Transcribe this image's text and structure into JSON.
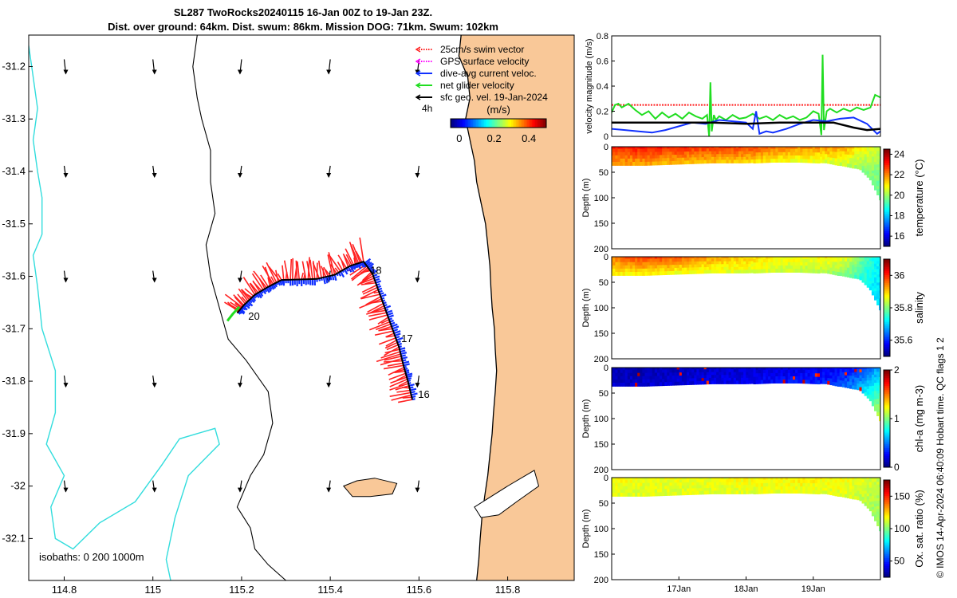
{
  "title": {
    "line1": "SL287 TwoRocks20240115 16-Jan 00Z to 19-Jan 23Z.",
    "line2": "Dist. over ground: 64km. Dist. swum: 86km. Mission DOG: 71km. Swum: 102km"
  },
  "credit": "© IMOS 14-Apr-2024 06:40:09 Hobart time. QC flags 1  2",
  "colors": {
    "land": "#f9c898",
    "isobath_0": "#000000",
    "isobath_200": "#000000",
    "isobath_1000": "#33dddd",
    "swim_vector": "#ff2020",
    "gps_velocity": "#ff00ff",
    "dive_avg": "#1030ff",
    "net_glider": "#20dd20",
    "sfc_geo": "#000000",
    "track": "#000000"
  },
  "chart_data": [
    {
      "id": "map",
      "type": "scatter",
      "xlim": [
        114.72,
        115.95
      ],
      "ylim": [
        -32.18,
        -31.14
      ],
      "x_ticks": [
        114.8,
        115,
        115.2,
        115.4,
        115.6,
        115.8
      ],
      "x_tick_labels": [
        "114.8",
        "115",
        "115.2",
        "115.4",
        "115.6",
        "115.8"
      ],
      "y_ticks": [
        -31.2,
        -31.3,
        -31.4,
        -31.5,
        -31.6,
        -31.7,
        -31.8,
        -31.9,
        -32,
        -32.1
      ],
      "y_tick_labels": [
        "-31.2",
        "-31.3",
        "-31.4",
        "-31.5",
        "-31.6",
        "-31.7",
        "-31.8",
        "-31.9",
        "-32",
        "-32.1"
      ],
      "legend": {
        "position": "top-right",
        "entries": [
          {
            "label": "25cm/s swim vector",
            "color": "#ff2020",
            "style": "dotted"
          },
          {
            "label": "GPS surface velocity",
            "color": "#ff00ff",
            "style": "dotted"
          },
          {
            "label": "dive-avg current veloc.",
            "color": "#1030ff",
            "style": "solid"
          },
          {
            "label": "net glider velocity",
            "color": "#20dd20",
            "style": "solid"
          },
          {
            "label": "sfc geo. vel. 19-Jan-2024",
            "color": "#000000",
            "style": "solid"
          }
        ],
        "scale_label": "4h"
      },
      "colorbar": {
        "label": "(m/s)",
        "ticks": [
          0,
          0.2,
          0.4
        ],
        "tick_labels": [
          "0",
          "0.2",
          "0.4"
        ],
        "range": [
          -0.05,
          0.5
        ]
      },
      "isobath_label": "isobaths: 0   200  1000m",
      "track": [
        {
          "lon": 115.585,
          "lat": -31.835
        },
        {
          "lon": 115.575,
          "lat": -31.8
        },
        {
          "lon": 115.565,
          "lat": -31.77
        },
        {
          "lon": 115.555,
          "lat": -31.735
        },
        {
          "lon": 115.54,
          "lat": -31.7
        },
        {
          "lon": 115.525,
          "lat": -31.665
        },
        {
          "lon": 115.51,
          "lat": -31.63
        },
        {
          "lon": 115.495,
          "lat": -31.595
        },
        {
          "lon": 115.475,
          "lat": -31.572
        },
        {
          "lon": 115.445,
          "lat": -31.58
        },
        {
          "lon": 115.41,
          "lat": -31.597
        },
        {
          "lon": 115.37,
          "lat": -31.605
        },
        {
          "lon": 115.33,
          "lat": -31.606
        },
        {
          "lon": 115.29,
          "lat": -31.607
        },
        {
          "lon": 115.26,
          "lat": -31.62
        },
        {
          "lon": 115.23,
          "lat": -31.635
        },
        {
          "lon": 115.205,
          "lat": -31.655
        },
        {
          "lon": 115.19,
          "lat": -31.67
        }
      ],
      "net_glider_tail": [
        {
          "lon": 115.195,
          "lat": -31.658
        },
        {
          "lon": 115.18,
          "lat": -31.672
        },
        {
          "lon": 115.168,
          "lat": -31.685
        }
      ],
      "day_labels": [
        {
          "text": "16",
          "lon": 115.598,
          "lat": -31.832
        },
        {
          "text": "17",
          "lon": 115.56,
          "lat": -31.725
        },
        {
          "text": "18",
          "lon": 115.49,
          "lat": -31.595
        },
        {
          "text": "20",
          "lon": 115.215,
          "lat": -31.683
        }
      ],
      "sfc_geo_arrow_grid": {
        "lons": [
          114.8,
          115.0,
          115.2,
          115.4,
          115.6
        ],
        "lats": [
          -31.2,
          -31.4,
          -31.6,
          -31.8,
          -32.0
        ]
      }
    },
    {
      "id": "velocity",
      "type": "line",
      "ylabel": "velocity magnitude (m/s)",
      "ylim": [
        0,
        0.8
      ],
      "y_ticks": [
        0,
        0.2,
        0.4,
        0.6,
        0.8
      ],
      "y_tick_labels": [
        "0",
        "0.2",
        "0.4",
        "0.6",
        "0.8"
      ],
      "x_days": [
        16,
        20
      ],
      "series": [
        {
          "name": "swim vector",
          "color": "#ff2020",
          "style": "dotted",
          "t": [
            16.0,
            20.0
          ],
          "v": [
            0.25,
            0.25
          ]
        },
        {
          "name": "net glider velocity",
          "color": "#20dd20",
          "t": [
            16.0,
            16.05,
            16.1,
            16.15,
            16.25,
            16.35,
            16.45,
            16.55,
            16.65,
            16.75,
            16.85,
            16.95,
            17.05,
            17.15,
            17.25,
            17.35,
            17.42,
            17.45,
            17.47,
            17.49,
            17.52,
            17.55,
            17.6,
            17.7,
            17.8,
            17.9,
            18.0,
            18.1,
            18.2,
            18.3,
            18.4,
            18.5,
            18.6,
            18.7,
            18.8,
            18.9,
            19.0,
            19.08,
            19.12,
            19.14,
            19.16,
            19.2,
            19.25,
            19.35,
            19.45,
            19.55,
            19.65,
            19.75,
            19.85,
            19.92,
            20.0
          ],
          "v": [
            0.19,
            0.25,
            0.26,
            0.23,
            0.26,
            0.21,
            0.17,
            0.2,
            0.14,
            0.19,
            0.15,
            0.18,
            0.14,
            0.19,
            0.16,
            0.14,
            0.17,
            0.0,
            0.43,
            0.04,
            0.17,
            0.13,
            0.16,
            0.13,
            0.17,
            0.14,
            0.15,
            0.18,
            0.14,
            0.16,
            0.13,
            0.17,
            0.14,
            0.16,
            0.13,
            0.15,
            0.2,
            0.18,
            0.01,
            0.65,
            0.05,
            0.2,
            0.22,
            0.19,
            0.22,
            0.2,
            0.23,
            0.21,
            0.23,
            0.33,
            0.31
          ]
        },
        {
          "name": "dive-avg current veloc.",
          "color": "#1030ff",
          "t": [
            16.0,
            16.2,
            16.4,
            16.6,
            16.8,
            17.0,
            17.2,
            17.4,
            17.6,
            17.8,
            18.0,
            18.1,
            18.15,
            18.2,
            18.3,
            18.4,
            18.6,
            18.8,
            19.0,
            19.2,
            19.4,
            19.6,
            19.8,
            19.95,
            20.0
          ],
          "v": [
            0.06,
            0.05,
            0.04,
            0.03,
            0.05,
            0.08,
            0.11,
            0.1,
            0.13,
            0.12,
            0.11,
            0.06,
            0.2,
            0.02,
            0.04,
            0.03,
            0.06,
            0.1,
            0.13,
            0.12,
            0.14,
            0.15,
            0.1,
            0.02,
            0.04
          ]
        },
        {
          "name": "sfc geo. vel.",
          "color": "#000000",
          "t": [
            16.0,
            16.5,
            17.0,
            17.5,
            18.0,
            18.5,
            19.0,
            19.3,
            19.6,
            19.8,
            20.0
          ],
          "v": [
            0.11,
            0.11,
            0.11,
            0.11,
            0.1,
            0.11,
            0.11,
            0.11,
            0.07,
            0.05,
            0.06
          ]
        }
      ]
    },
    {
      "id": "temperature",
      "type": "heatmap",
      "ylabel": "Depth (m)",
      "colorbar_label": "temperature (°C)",
      "ylim": [
        200,
        0
      ],
      "y_ticks": [
        0,
        50,
        100,
        150,
        200
      ],
      "y_tick_labels": [
        "0",
        "50",
        "100",
        "150",
        "200"
      ],
      "clim": [
        15,
        24.5
      ],
      "colorbar_ticks": [
        16,
        18,
        20,
        22,
        24
      ],
      "colorbar_tick_labels": [
        "16",
        "18",
        "20",
        "22",
        "24"
      ],
      "t": [
        16.0,
        16.5,
        17.0,
        17.5,
        18.0,
        18.4,
        18.8,
        19.2,
        19.5,
        19.7,
        19.85,
        20.0
      ],
      "bottom_depth": [
        32,
        32,
        30,
        28,
        28,
        26,
        26,
        28,
        35,
        40,
        60,
        100
      ],
      "surface": [
        23.0,
        23.2,
        23.0,
        22.8,
        22.7,
        22.4,
        21.9,
        22.0,
        21.8,
        21.0,
        20.8,
        20.2
      ],
      "bottom": [
        21.8,
        21.8,
        21.6,
        21.6,
        21.4,
        21.0,
        20.8,
        20.6,
        20.4,
        20.0,
        19.6,
        19.4
      ]
    },
    {
      "id": "salinity",
      "type": "heatmap",
      "ylabel": "Depth (m)",
      "colorbar_label": "salinity",
      "ylim": [
        200,
        0
      ],
      "y_ticks": [
        0,
        50,
        100,
        150,
        200
      ],
      "y_tick_labels": [
        "0",
        "50",
        "100",
        "150",
        "200"
      ],
      "clim": [
        35.5,
        36.1
      ],
      "colorbar_ticks": [
        35.6,
        35.8,
        36
      ],
      "colorbar_tick_labels": [
        "35.6",
        "35.8",
        "36"
      ],
      "t": [
        16.0,
        16.5,
        17.0,
        17.5,
        18.0,
        18.4,
        18.8,
        19.2,
        19.5,
        19.7,
        19.85,
        20.0
      ],
      "bottom_depth": [
        32,
        32,
        30,
        28,
        28,
        26,
        26,
        28,
        35,
        40,
        60,
        100
      ],
      "surface": [
        35.95,
        36.0,
        35.97,
        35.93,
        35.9,
        35.88,
        35.87,
        35.88,
        35.86,
        35.8,
        35.75,
        35.72
      ],
      "bottom": [
        35.88,
        35.88,
        35.87,
        35.86,
        35.86,
        35.85,
        35.84,
        35.83,
        35.8,
        35.75,
        35.72,
        35.7
      ]
    },
    {
      "id": "chla",
      "type": "heatmap",
      "ylabel": "Depth (m)",
      "colorbar_label": "chl-a (mg m-3)",
      "ylim": [
        200,
        0
      ],
      "y_ticks": [
        0,
        50,
        100,
        150,
        200
      ],
      "y_tick_labels": [
        "0",
        "50",
        "100",
        "150",
        "200"
      ],
      "clim": [
        0,
        2
      ],
      "colorbar_ticks": [
        0,
        1,
        2
      ],
      "colorbar_tick_labels": [
        "0",
        "1",
        "2"
      ],
      "t": [
        16.0,
        16.5,
        17.0,
        17.5,
        18.0,
        18.4,
        18.8,
        19.2,
        19.5,
        19.7,
        19.85,
        20.0
      ],
      "bottom_depth": [
        32,
        32,
        30,
        28,
        28,
        26,
        26,
        28,
        35,
        40,
        60,
        100
      ],
      "surface": [
        0.1,
        0.1,
        0.12,
        0.15,
        0.15,
        0.18,
        0.2,
        0.22,
        0.25,
        0.35,
        0.45,
        0.6
      ],
      "bottom": [
        0.15,
        0.15,
        0.18,
        0.2,
        0.22,
        0.25,
        0.28,
        0.3,
        0.45,
        0.6,
        0.85,
        1.2
      ]
    },
    {
      "id": "oxygen",
      "type": "heatmap",
      "ylabel": "Depth (m)",
      "colorbar_label": "Ox. sat. ratio (%)",
      "ylim": [
        200,
        0
      ],
      "y_ticks": [
        0,
        50,
        100,
        150,
        200
      ],
      "y_tick_labels": [
        "0",
        "50",
        "100",
        "150",
        "200"
      ],
      "clim": [
        25,
        175
      ],
      "colorbar_ticks": [
        50,
        100,
        150
      ],
      "colorbar_tick_labels": [
        "50",
        "100",
        "150"
      ],
      "x_ticks": [
        17,
        18,
        19
      ],
      "x_tick_labels": [
        "17Jan",
        "18Jan",
        "19Jan"
      ],
      "t": [
        16.0,
        16.5,
        17.0,
        17.5,
        18.0,
        18.4,
        18.8,
        19.2,
        19.5,
        19.7,
        19.85,
        20.0
      ],
      "bottom_depth": [
        32,
        32,
        30,
        28,
        28,
        26,
        26,
        28,
        35,
        40,
        60,
        100
      ],
      "surface": [
        118,
        117,
        116,
        117,
        118,
        119,
        120,
        119,
        118,
        116,
        114,
        110
      ],
      "bottom": [
        114,
        114,
        114,
        114,
        115,
        115,
        116,
        115,
        114,
        110,
        106,
        102
      ]
    }
  ]
}
